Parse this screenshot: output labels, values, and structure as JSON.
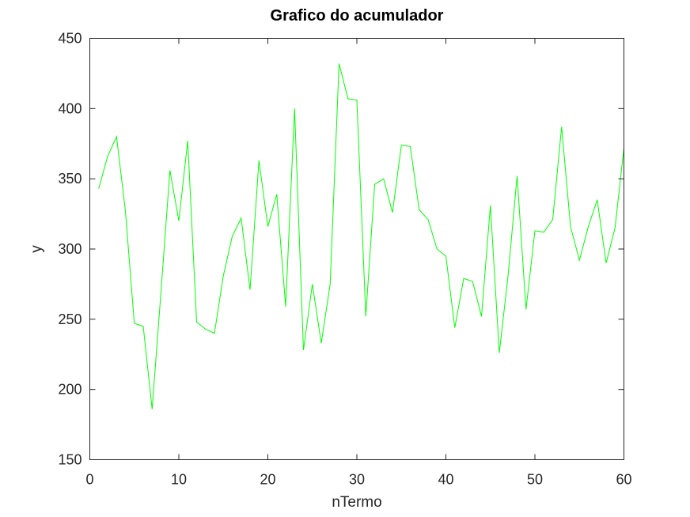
{
  "chart_data": {
    "type": "line",
    "title": "Grafico do acumulador",
    "xlabel": "nTermo",
    "ylabel": "y",
    "xlim": [
      0,
      60
    ],
    "ylim": [
      150,
      450
    ],
    "xticks": [
      0,
      10,
      20,
      30,
      40,
      50,
      60
    ],
    "yticks": [
      150,
      200,
      250,
      300,
      350,
      400,
      450
    ],
    "grid": false,
    "legend": "none",
    "series": [
      {
        "color": "#00ff00",
        "x": [
          1,
          2,
          3,
          4,
          5,
          6,
          7,
          8,
          9,
          10,
          11,
          12,
          13,
          14,
          15,
          16,
          17,
          18,
          19,
          20,
          21,
          22,
          23,
          24,
          25,
          26,
          27,
          28,
          29,
          30,
          31,
          32,
          33,
          34,
          35,
          36,
          37,
          38,
          39,
          40,
          41,
          42,
          43,
          44,
          45,
          46,
          47,
          48,
          49,
          50,
          51,
          52,
          53,
          54,
          55,
          56,
          57,
          58,
          59,
          60
        ],
        "values": [
          343,
          366,
          380,
          327,
          247,
          245,
          186,
          270,
          356,
          320,
          377,
          248,
          243,
          240,
          281,
          309,
          322,
          271,
          363,
          316,
          339,
          259,
          400,
          228,
          275,
          233,
          275,
          432,
          407,
          406,
          252,
          346,
          350,
          326,
          374,
          373,
          328,
          321,
          300,
          295,
          244,
          279,
          277,
          252,
          331,
          226,
          282,
          352,
          257,
          313,
          312,
          321,
          387,
          316,
          292,
          316,
          335,
          290,
          315,
          372
        ]
      }
    ]
  }
}
